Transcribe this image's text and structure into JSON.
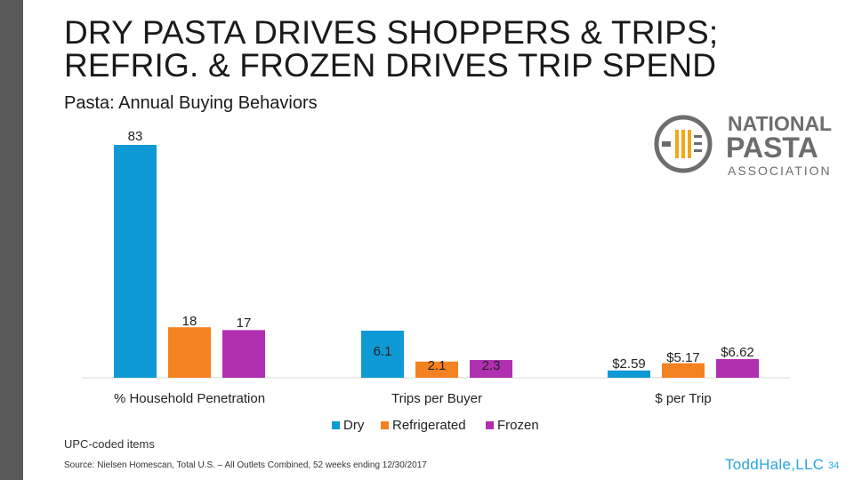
{
  "slide": {
    "title_line1": "DRY PASTA DRIVES SHOPPERS & TRIPS;",
    "title_line2": "REFRIG. & FROZEN DRIVES TRIP SPEND",
    "subtitle": "Pasta: Annual Buying Behaviors",
    "footnote": "UPC-coded items",
    "source": "Source: Nielsen Homescan, Total U.S. – All Outlets Combined, 52 weeks ending 12/30/2017",
    "brand": "ToddHale,LLC",
    "page_number": "34"
  },
  "logo": {
    "line1": "NATIONAL",
    "line2": "PASTA",
    "line3": "ASSOCIATION"
  },
  "colors": {
    "dry": "#0f9ad6",
    "refrigerated": "#f58220",
    "frozen": "#b12fb1"
  },
  "chart_data": {
    "type": "bar",
    "title": "Pasta: Annual Buying Behaviors",
    "categories": [
      "% Household Penetration",
      "Trips per Buyer",
      "$ per Trip"
    ],
    "series": [
      {
        "name": "Dry",
        "labels": [
          "83",
          "6.1",
          "$2.59"
        ],
        "values": [
          83,
          6.1,
          2.59
        ]
      },
      {
        "name": "Refrigerated",
        "labels": [
          "18",
          "2.1",
          "$5.17"
        ],
        "values": [
          18,
          2.1,
          5.17
        ]
      },
      {
        "name": "Frozen",
        "labels": [
          "17",
          "2.3",
          "$6.62"
        ],
        "values": [
          17,
          2.3,
          6.62
        ]
      }
    ],
    "legend": "bottom-center",
    "xlabel": "",
    "ylabel": ""
  }
}
